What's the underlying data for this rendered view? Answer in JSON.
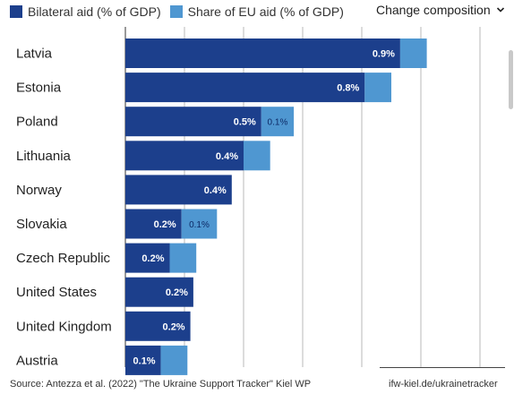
{
  "legend": {
    "items": [
      {
        "label": "Bilateral aid (% of GDP)",
        "color": "#1c3f8c"
      },
      {
        "label": "Share of EU aid (% of GDP)",
        "color": "#4f97d1"
      }
    ]
  },
  "controls": {
    "change_composition_label": "Change composition",
    "chevron_icon": "chevron-down-icon"
  },
  "chart_data": {
    "type": "bar",
    "orientation": "horizontal",
    "stacked": true,
    "categories": [
      "Latvia",
      "Estonia",
      "Poland",
      "Lithuania",
      "Norway",
      "Slovakia",
      "Czech Republic",
      "United States",
      "United Kingdom",
      "Austria"
    ],
    "series": [
      {
        "name": "Bilateral aid (% of GDP)",
        "color": "#1c3f8c",
        "values": [
          0.93,
          0.81,
          0.46,
          0.4,
          0.36,
          0.19,
          0.15,
          0.23,
          0.22,
          0.12
        ],
        "labels": [
          "0.9%",
          "0.8%",
          "0.5%",
          "0.4%",
          "0.4%",
          "0.2%",
          "0.2%",
          "0.2%",
          "0.2%",
          "0.1%"
        ]
      },
      {
        "name": "Share of EU aid (% of GDP)",
        "color": "#4f97d1",
        "values": [
          0.09,
          0.09,
          0.11,
          0.09,
          0.0,
          0.12,
          0.09,
          0.0,
          0.0,
          0.09
        ],
        "labels": [
          "",
          "",
          "0.1%",
          "",
          "",
          "0.1%",
          "",
          "",
          "",
          ""
        ]
      }
    ],
    "xlim": [
      0,
      1.3
    ],
    "gridlines": [
      0.2,
      0.4,
      0.6,
      0.8,
      1.0,
      1.2
    ],
    "grid": true,
    "legend_position": "top-left"
  },
  "footer": {
    "source": "Source: Antezza et al. (2022) \"The Ukraine Support Tracker\" Kiel WP",
    "url": "ifw-kiel.de/ukrainetracker"
  }
}
